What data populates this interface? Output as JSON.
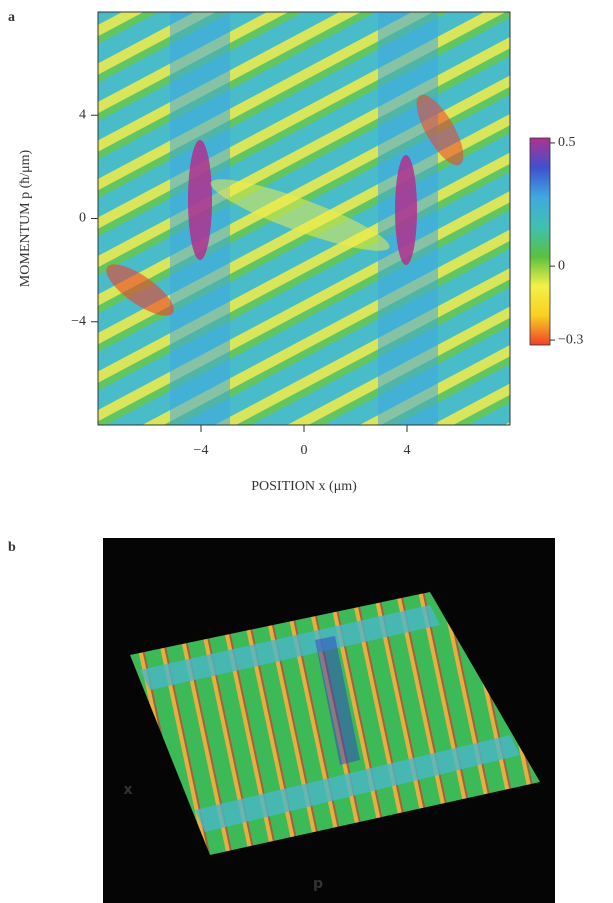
{
  "chart_data": [
    {
      "type": "heatmap",
      "panel_label": "a",
      "xlabel": "POSITION x (μm)",
      "ylabel": "MOMENTUM p (ħ/μm)",
      "xlim": [
        -8,
        8
      ],
      "ylim": [
        -8,
        8
      ],
      "xticks": [
        {
          "value": -4,
          "label": "−4"
        },
        0,
        4
      ],
      "yticks": [
        {
          "value": -4,
          "label": "−4"
        },
        0,
        4
      ],
      "clim": [
        -0.32,
        0.52
      ],
      "cticks": [
        {
          "value": -0.3,
          "label": "−0.3"
        },
        0,
        0.5
      ],
      "colorscale": [
        "#f0402a",
        "#f8d020",
        "#f4f048",
        "#58c040",
        "#40c0b0",
        "#40a8e0",
        "#4050d0",
        "#b03090"
      ]
    },
    {
      "type": "surface",
      "panel_label": "b",
      "xlabel": "x",
      "ylabel": "p"
    }
  ]
}
